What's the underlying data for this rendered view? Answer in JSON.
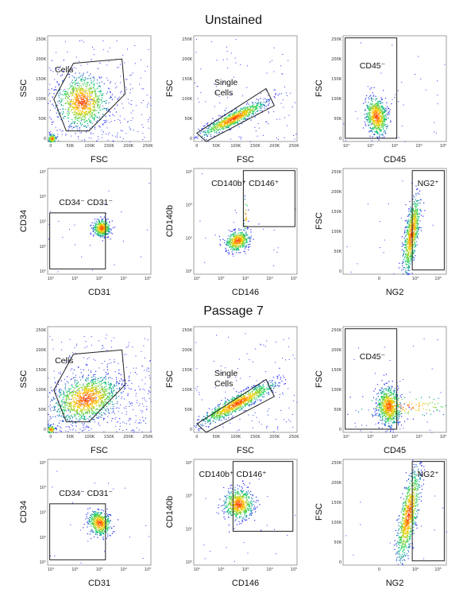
{
  "sections": [
    {
      "title": "Unstained",
      "plots": [
        {
          "type": "scatter",
          "xlabel": "FSC",
          "ylabel": "SSC",
          "gate": "Cells",
          "xticks": [
            "0",
            "50K",
            "100K",
            "150K",
            "200K",
            "250K"
          ],
          "yticks": [
            "0",
            "50K",
            "100K",
            "150K",
            "200K",
            "250K"
          ]
        },
        {
          "type": "scatter",
          "xlabel": "FSC",
          "ylabel": "FSC",
          "gate": "Single Cells",
          "xticks": [
            "0",
            "50K",
            "100K",
            "150K",
            "200K",
            "250K"
          ],
          "yticks": [
            "0",
            "50K",
            "100K",
            "150K",
            "200K",
            "250K"
          ]
        },
        {
          "type": "scatter",
          "xlabel": "CD45",
          "ylabel": "FSC",
          "gate": "CD45⁻",
          "xticks": [
            "10¹",
            "10²",
            "10³",
            "10⁴",
            "10⁵"
          ],
          "yticks": [
            "0",
            "50K",
            "100K",
            "150K",
            "200K",
            "250K"
          ]
        },
        {
          "type": "scatter",
          "xlabel": "CD31",
          "ylabel": "CD34",
          "gate": "CD34⁻ CD31⁻",
          "xticks": [
            "10¹",
            "10²",
            "10³",
            "10⁴",
            "10⁵"
          ],
          "yticks": [
            "10¹",
            "10²",
            "10³",
            "10⁴",
            "10⁵"
          ]
        },
        {
          "type": "scatter",
          "xlabel": "CD146",
          "ylabel": "CD140b",
          "gate": "CD140b⁺ CD146⁺",
          "xticks": [
            "10¹",
            "10²",
            "10³",
            "10⁴",
            "10⁵"
          ],
          "yticks": [
            "10²",
            "10³",
            "10⁴",
            "10⁵"
          ]
        },
        {
          "type": "scatter",
          "xlabel": "NG2",
          "ylabel": "FSC",
          "gate": "NG2⁺",
          "xticks": [
            "0",
            "10⁴",
            "10⁵"
          ],
          "yticks": [
            "0",
            "50K",
            "100K",
            "150K",
            "200K",
            "250K"
          ]
        }
      ]
    },
    {
      "title": "Passage 7",
      "plots": [
        {
          "type": "scatter",
          "xlabel": "FSC",
          "ylabel": "SSC",
          "gate": "Cells",
          "xticks": [
            "0",
            "50K",
            "100K",
            "150K",
            "200K",
            "250K"
          ],
          "yticks": [
            "0",
            "50K",
            "100K",
            "150K",
            "200K",
            "250K"
          ]
        },
        {
          "type": "scatter",
          "xlabel": "FSC",
          "ylabel": "FSC",
          "gate": "Single Cells",
          "xticks": [
            "0",
            "50K",
            "100K",
            "150K",
            "200K",
            "250K"
          ],
          "yticks": [
            "0",
            "50K",
            "100K",
            "150K",
            "200K",
            "250K"
          ]
        },
        {
          "type": "scatter",
          "xlabel": "CD45",
          "ylabel": "FSC",
          "gate": "CD45⁻",
          "xticks": [
            "10¹",
            "10²",
            "10³",
            "10⁴",
            "10⁵"
          ],
          "yticks": [
            "0",
            "50K",
            "100K",
            "150K",
            "200K",
            "250K"
          ]
        },
        {
          "type": "scatter",
          "xlabel": "CD31",
          "ylabel": "CD34",
          "gate": "CD34⁻ CD31⁻",
          "xticks": [
            "10¹",
            "10²",
            "10³",
            "10⁴",
            "10⁵"
          ],
          "yticks": [
            "10¹",
            "10²",
            "10³",
            "10⁴",
            "10⁵"
          ]
        },
        {
          "type": "scatter",
          "xlabel": "CD146",
          "ylabel": "CD140b",
          "gate": "CD140b⁺ CD146⁺",
          "xticks": [
            "10¹",
            "10²",
            "10³",
            "10⁴",
            "10⁵"
          ],
          "yticks": [
            "10²",
            "10³",
            "10⁴",
            "10⁵"
          ]
        },
        {
          "type": "scatter",
          "xlabel": "NG2",
          "ylabel": "FSC",
          "gate": "NG2⁺",
          "xticks": [
            "0",
            "10⁴",
            "10⁵"
          ],
          "yticks": [
            "0",
            "50K",
            "100K",
            "150K",
            "200K",
            "250K"
          ]
        }
      ]
    }
  ],
  "colors": {
    "low": "#2a2aff",
    "mid": "#00d060",
    "high": "#ffd000",
    "peak": "#ff2000",
    "gate": "#222222"
  }
}
